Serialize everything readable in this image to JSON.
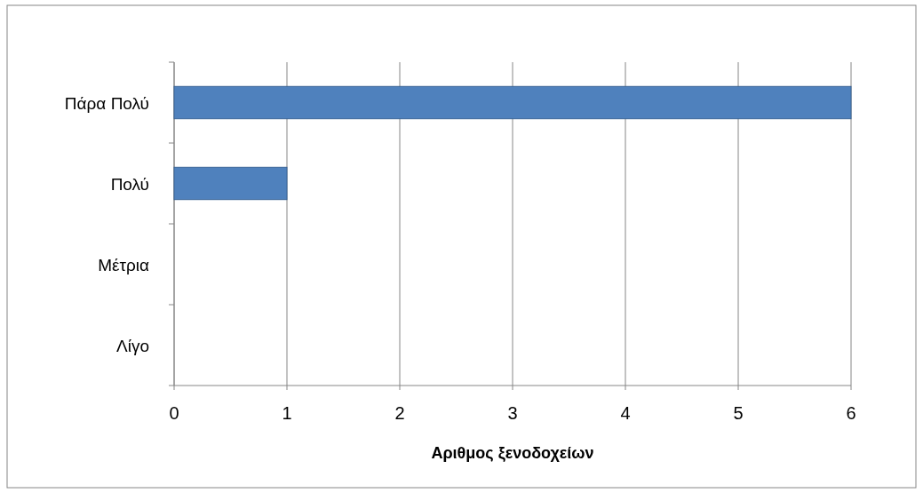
{
  "chart_data": {
    "type": "bar",
    "orientation": "horizontal",
    "xlabel": "Αριθμος ξενοδοχείων",
    "categories": [
      "Πάρα Πολύ",
      "Πολύ",
      "Μέτρια",
      "Λίγο"
    ],
    "values": [
      6,
      1,
      0,
      0
    ],
    "color": "#4f81bd",
    "xlim": [
      0,
      6
    ],
    "xticks": [
      0,
      1,
      2,
      3,
      4,
      5,
      6
    ],
    "grid": "x"
  }
}
